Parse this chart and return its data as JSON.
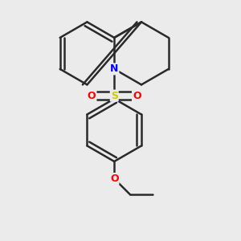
{
  "background_color": "#ebebeb",
  "bond_color": "#2a2a2a",
  "bond_width": 1.8,
  "atom_colors": {
    "N": "#0000ff",
    "S": "#cccc00",
    "O": "#ff0000",
    "C": "#2a2a2a"
  },
  "font_size": 9,
  "figsize": [
    3.0,
    3.0
  ],
  "dpi": 100
}
